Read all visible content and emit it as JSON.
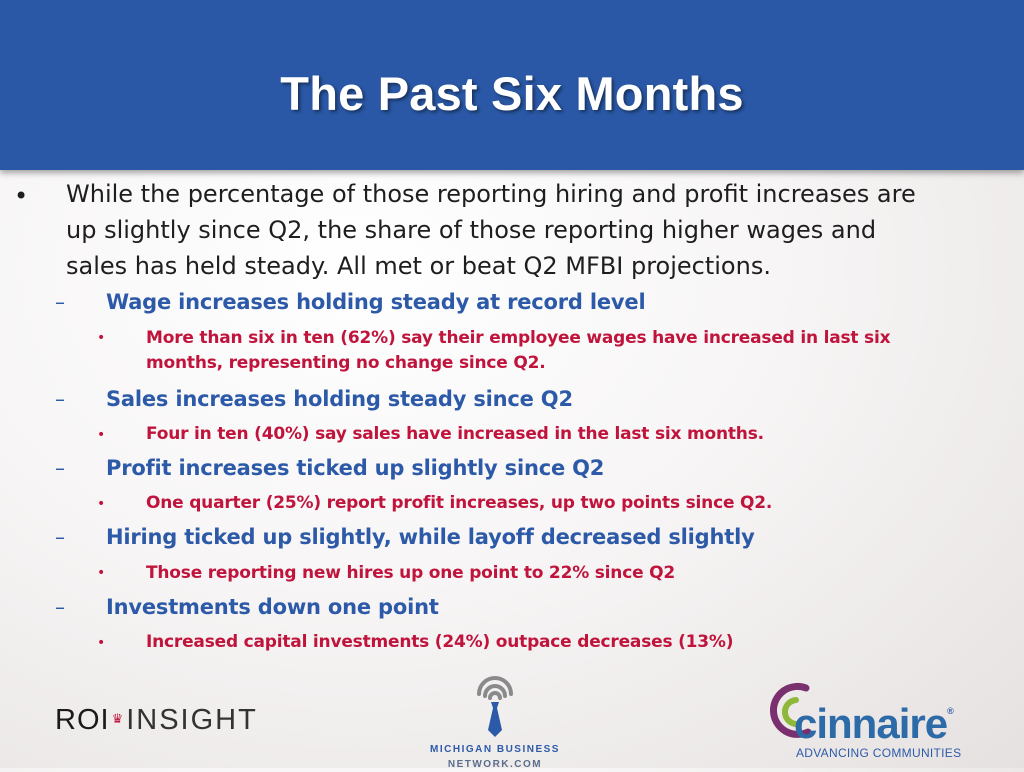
{
  "slide": {
    "title": "The Past Six Months",
    "intro": {
      "bullet": "•",
      "lines": [
        "While the percentage of those reporting hiring and profit increases are",
        "up slightly since Q2, the share of those reporting higher wages and",
        "sales has held steady. All met or beat Q2 MFBI projections."
      ]
    },
    "sections": [
      {
        "dash": "–",
        "heading": "Wage increases holding steady at record level",
        "points": [
          {
            "bullet": "•",
            "lines": [
              "More than six in ten (62%) say their employee wages have increased in last six",
              "months, representing no change since Q2."
            ]
          }
        ]
      },
      {
        "dash": "–",
        "heading": "Sales increases holding steady since Q2",
        "points": [
          {
            "bullet": "•",
            "lines": [
              "Four in ten (40%) say sales have increased in the last six months."
            ]
          }
        ]
      },
      {
        "dash": "–",
        "heading": "Profit increases ticked up slightly since Q2",
        "points": [
          {
            "bullet": "•",
            "lines": [
              "One quarter (25%) report profit increases, up two points since Q2."
            ]
          }
        ]
      },
      {
        "dash": "–",
        "heading": "Hiring ticked up slightly, while layoff decreased slightly",
        "points": [
          {
            "bullet": "•",
            "lines": [
              "Those reporting new hires up one point to 22% since Q2"
            ]
          }
        ]
      },
      {
        "dash": "–",
        "heading": "Investments down one point",
        "points": [
          {
            "bullet": "•",
            "lines": [
              "Increased capital investments (24%) outpace decreases (13%)"
            ]
          }
        ]
      }
    ]
  },
  "logos": {
    "roi": {
      "part1": "ROI",
      "part2": "INSIGHT"
    },
    "mbn": {
      "line1": "MICHIGAN BUSINESS",
      "line2": "NETWORK.COM"
    },
    "cinnaire": {
      "name": "cinnaire",
      "registered": "®",
      "tagline": "ADVANCING COMMUNITIES"
    }
  },
  "colors": {
    "header_bg": "#2a58a6",
    "heading_blue": "#2d5aa8",
    "point_red": "#c0143c",
    "cinnaire_purple": "#7a2f6e"
  }
}
